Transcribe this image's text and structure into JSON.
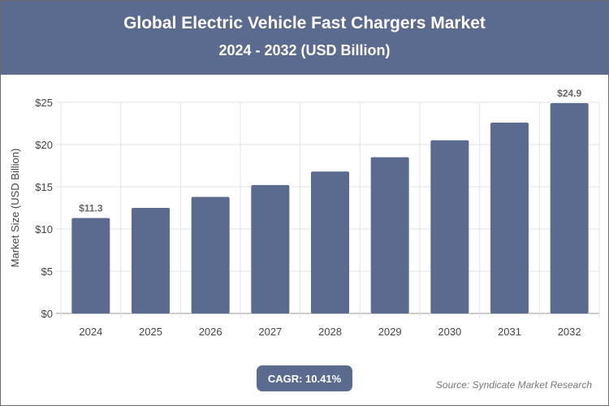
{
  "header": {
    "title": "Global Electric Vehicle Fast Chargers Market",
    "subtitle": "2024 - 2032 (USD Billion)"
  },
  "colors": {
    "header_bg": "#5b6b8f",
    "bar": "#5b6b8f"
  },
  "chart_data": {
    "type": "bar",
    "categories": [
      "2024",
      "2025",
      "2026",
      "2027",
      "2028",
      "2029",
      "2030",
      "2031",
      "2032"
    ],
    "values": [
      11.3,
      12.5,
      13.8,
      15.2,
      16.8,
      18.5,
      20.5,
      22.6,
      24.9
    ],
    "data_labels": {
      "0": "$11.3",
      "8": "$24.9"
    },
    "ylabel": "Market Size (USD Billion)",
    "xlabel": "",
    "ylim": [
      0,
      25
    ],
    "yticks": [
      "$0",
      "$5",
      "$10",
      "$15",
      "$20",
      "$25"
    ],
    "grid": true
  },
  "cagr": "CAGR: 10.41%",
  "source": "Source: Syndicate Market Research"
}
